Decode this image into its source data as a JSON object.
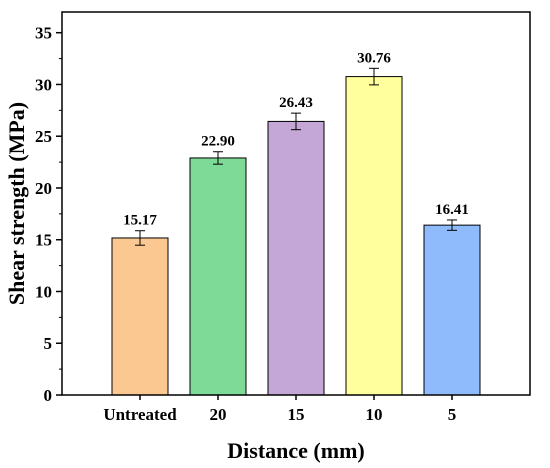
{
  "chart_data": {
    "type": "bar",
    "title": "",
    "xlabel": "Distance (mm)",
    "ylabel": "Shear strength (MPa)",
    "categories": [
      "Untreated",
      "20",
      "15",
      "10",
      "5"
    ],
    "values": [
      15.17,
      22.9,
      26.43,
      30.76,
      16.41
    ],
    "value_labels": [
      "15.17",
      "22.90",
      "26.43",
      "30.76",
      "16.41"
    ],
    "error": [
      0.7,
      0.6,
      0.8,
      0.8,
      0.5
    ],
    "colors": [
      "#FCC892",
      "#7DDA97",
      "#C4A7D6",
      "#FFFF9E",
      "#8FBBFC"
    ],
    "ylim": [
      0,
      37
    ],
    "yticks": [
      0,
      5,
      10,
      15,
      20,
      25,
      30,
      35
    ],
    "grid": false,
    "legend": "none"
  }
}
